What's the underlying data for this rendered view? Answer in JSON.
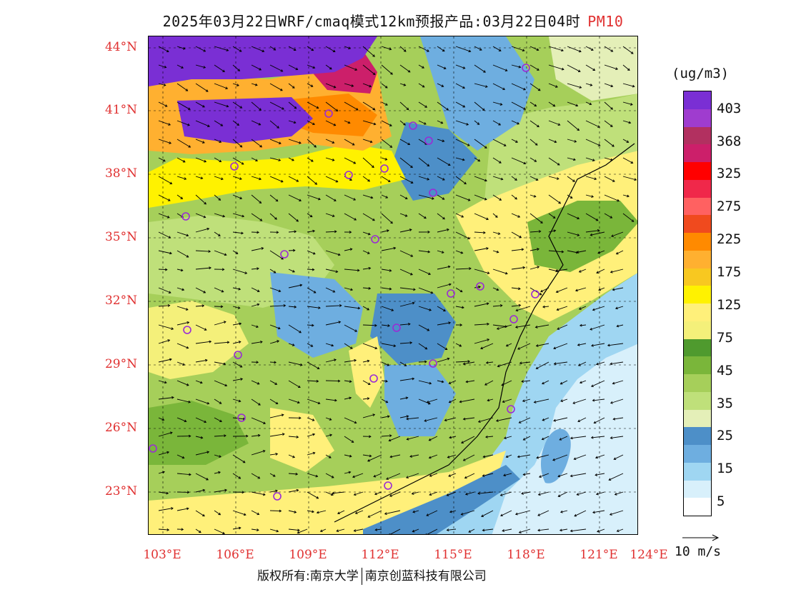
{
  "title": {
    "text": "2025年03月22日WRF/cmaq模式12km预报产品:03月22日04时",
    "variable": "PM10"
  },
  "map": {
    "lat_labels": [
      "44°N",
      "41°N",
      "38°N",
      "35°N",
      "32°N",
      "29°N",
      "26°N",
      "23°N"
    ],
    "lon_labels": [
      "103°E",
      "106°E",
      "109°E",
      "112°E",
      "115°E",
      "118°E",
      "121°E",
      "124°E"
    ],
    "colors": {
      "label": "#e03030",
      "station": "#9a2bd6"
    }
  },
  "legend": {
    "units": "(ug/m3)",
    "ticks": [
      "403",
      "368",
      "325",
      "275",
      "225",
      "175",
      "125",
      "75",
      "45",
      "35",
      "25",
      "15",
      "5"
    ],
    "colors": [
      "#7a2fd4",
      "#9f3ccf",
      "#b23060",
      "#cc1f6a",
      "#ff0000",
      "#f0284a",
      "#ff6161",
      "#f04a1e",
      "#ff8a00",
      "#ffb030",
      "#f8c820",
      "#fff200",
      "#fff07a",
      "#f4f07a",
      "#4f9a2e",
      "#7ab63a",
      "#a6cf5a",
      "#bfe07a",
      "#e4efb8",
      "#4d8fc8",
      "#6eaee0",
      "#9fd6f2",
      "#d8f0fb",
      "#ffffff"
    ],
    "wind_label": "10 m/s"
  },
  "footer": {
    "left": "版权所有:南京大学",
    "right": "南京创蓝科技有限公司"
  }
}
